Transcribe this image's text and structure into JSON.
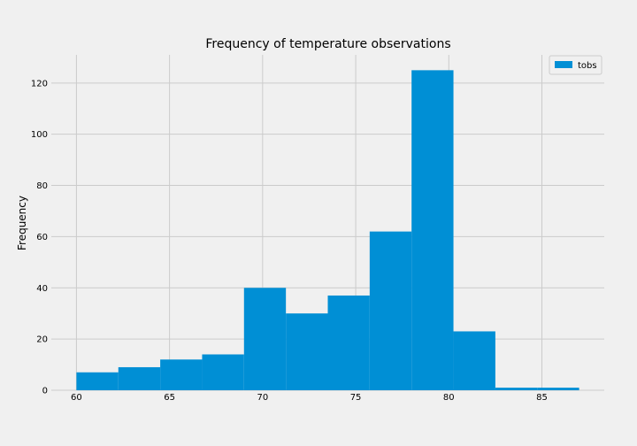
{
  "chart_data": {
    "type": "bar",
    "title": "Frequency of temperature observations",
    "xlabel": "",
    "ylabel": "Frequency",
    "xlim": [
      58.65,
      88.35
    ],
    "ylim": [
      0,
      131
    ],
    "x_ticks": [
      60,
      65,
      70,
      75,
      80,
      85
    ],
    "y_ticks": [
      0,
      20,
      40,
      60,
      80,
      100,
      120
    ],
    "grid": true,
    "legend_position": "top-right",
    "bin_edges": [
      60.0,
      62.25,
      64.5,
      66.75,
      69.0,
      71.25,
      73.5,
      75.75,
      78.0,
      80.25,
      82.5,
      84.75,
      87.0
    ],
    "series": [
      {
        "name": "tobs",
        "color": "#008fd5",
        "values": [
          7,
          9,
          12,
          14,
          40,
          30,
          37,
          62,
          125,
          23,
          1,
          1
        ]
      }
    ]
  }
}
